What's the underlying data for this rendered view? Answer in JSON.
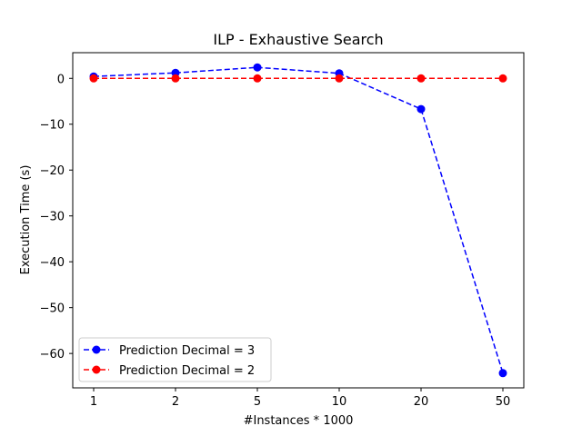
{
  "chart_data": {
    "type": "line",
    "title": "ILP - Exhaustive Search",
    "xlabel": "#Instances * 1000",
    "ylabel": "Execution Time (s)",
    "categories": [
      "1",
      "2",
      "5",
      "10",
      "20",
      "50"
    ],
    "ylim": [
      -67.5,
      5.6
    ],
    "yticks": [
      0,
      -10,
      -20,
      -30,
      -40,
      -50,
      -60
    ],
    "ytick_labels": [
      "0",
      "−10",
      "−20",
      "−30",
      "−40",
      "−50",
      "−60"
    ],
    "grid": false,
    "legend_position": "lower-left",
    "series": [
      {
        "name": "Prediction Decimal = 3",
        "color": "#0000ff",
        "values": [
          0.4,
          1.2,
          2.4,
          1.1,
          -6.7,
          -64.3
        ]
      },
      {
        "name": "Prediction Decimal = 2",
        "color": "#ff0000",
        "values": [
          0.0,
          0.0,
          0.0,
          0.0,
          0.0,
          0.0
        ]
      }
    ]
  }
}
